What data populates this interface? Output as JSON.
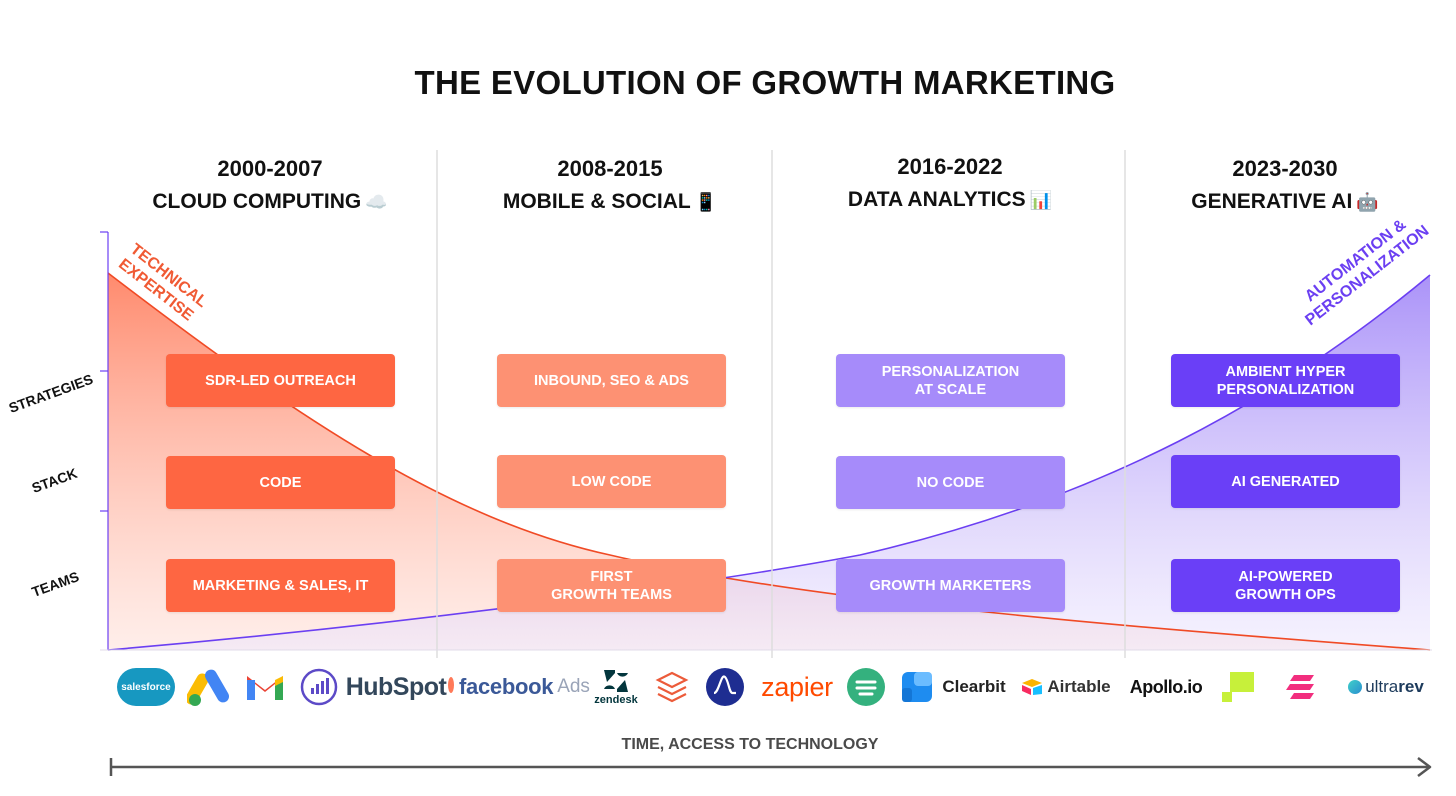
{
  "title": "THE EVOLUTION OF GROWTH MARKETING",
  "eras": [
    {
      "years": "2000-2007",
      "label": "CLOUD COMPUTING",
      "emoji": "☁️"
    },
    {
      "years": "2008-2015",
      "label": "MOBILE & SOCIAL",
      "emoji": "📱"
    },
    {
      "years": "2016-2022",
      "label": "DATA ANALYTICS",
      "emoji": "📊"
    },
    {
      "years": "2023-2030",
      "label": "GENERATIVE AI",
      "emoji": "🤖"
    }
  ],
  "row_labels": [
    "STRATEGIES",
    "STACK",
    "TEAMS"
  ],
  "cells": {
    "strategies": [
      "SDR-LED OUTREACH",
      "INBOUND, SEO & ADS",
      "PERSONALIZATION\nAT SCALE",
      "AMBIENT HYPER\nPERSONALIZATION"
    ],
    "stack": [
      "CODE",
      "LOW CODE",
      "NO CODE",
      "AI GENERATED"
    ],
    "teams": [
      "MARKETING & SALES, IT",
      "FIRST\nGROWTH TEAMS",
      "GROWTH MARKETERS",
      "AI-POWERED\nGROWTH OPS"
    ]
  },
  "curve_labels": {
    "decreasing": "TECHNICAL\nEXPERTISE",
    "increasing": "AUTOMATION &\nPERSONALIZATION"
  },
  "logos": {
    "salesforce": "salesforce",
    "hubspot": "HubSpot",
    "facebook": "facebook",
    "facebook_suffix": "Ads",
    "zendesk": "zendesk",
    "zapier": "zapier",
    "clearbit": "Clearbit",
    "airtable": "Airtable",
    "apollo": "Apollo.io",
    "ultrarev_a": "ultra",
    "ultrarev_b": "rev"
  },
  "axis_label": "TIME, ACCESS TO TECHNOLOGY",
  "colors": {
    "era1": "#fe6642",
    "era2": "#fd9173",
    "era3": "#a68bfa",
    "era4": "#6a3ff7",
    "tech_curve": "#f04a25",
    "auto_curve": "#6b3ff2"
  }
}
